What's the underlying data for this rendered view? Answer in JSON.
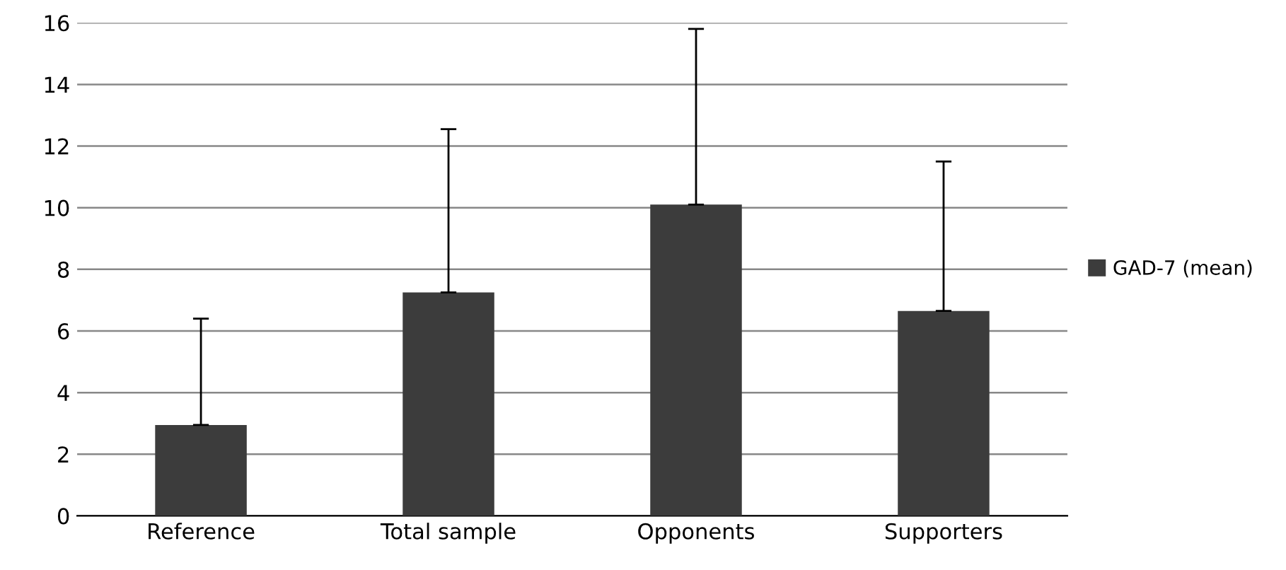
{
  "chart_data": {
    "type": "bar",
    "categories": [
      "Reference",
      "Total sample",
      "Opponents",
      "Supporters"
    ],
    "series": [
      {
        "name": "GAD-7 (mean)",
        "color": "#3c3c3c",
        "values": [
          2.95,
          7.25,
          10.1,
          6.65
        ],
        "errors": [
          [
            2.95,
            6.4
          ],
          [
            7.25,
            12.55
          ],
          [
            10.1,
            15.8
          ],
          [
            6.65,
            11.5
          ]
        ]
      }
    ],
    "ylim": [
      0,
      16
    ],
    "yticks": [
      0,
      2,
      4,
      6,
      8,
      10,
      12,
      14,
      16
    ],
    "grid": "y",
    "legend": "right"
  }
}
